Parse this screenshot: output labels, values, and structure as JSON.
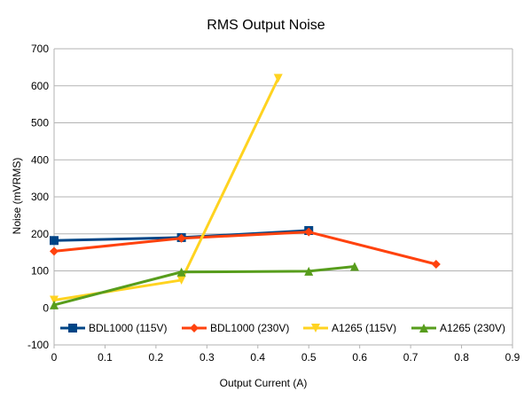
{
  "chart_data": {
    "type": "line",
    "title": "RMS Output Noise",
    "xlabel": "Output Current (A)",
    "ylabel": "Noise (mVRMS)",
    "xlim": [
      0,
      0.9
    ],
    "ylim": [
      -100,
      700
    ],
    "xticks": [
      "0",
      "0.1",
      "0.2",
      "0.3",
      "0.4",
      "0.5",
      "0.6",
      "0.7",
      "0.8",
      "0.9"
    ],
    "yticks": [
      "-100",
      "0",
      "100",
      "200",
      "300",
      "400",
      "500",
      "600",
      "700"
    ],
    "grid": true,
    "legend_position": "bottom",
    "series": [
      {
        "name": "BDL1000 (115V)",
        "color": "#004586",
        "marker": "square",
        "points": [
          [
            0,
            182
          ],
          [
            0.25,
            190
          ],
          [
            0.5,
            209
          ]
        ]
      },
      {
        "name": "BDL1000 (230V)",
        "color": "#ff420e",
        "marker": "diamond",
        "points": [
          [
            0,
            153
          ],
          [
            0.25,
            188
          ],
          [
            0.5,
            205
          ],
          [
            0.75,
            118
          ]
        ]
      },
      {
        "name": "A1265 (115V)",
        "color": "#ffd320",
        "marker": "triangle-down",
        "points": [
          [
            0,
            21
          ],
          [
            0.25,
            75
          ],
          [
            0.44,
            620
          ]
        ]
      },
      {
        "name": "A1265 (230V)",
        "color": "#579d1c",
        "marker": "triangle-up",
        "points": [
          [
            0,
            8
          ],
          [
            0.25,
            97
          ],
          [
            0.5,
            99
          ],
          [
            0.59,
            112
          ]
        ]
      }
    ]
  }
}
